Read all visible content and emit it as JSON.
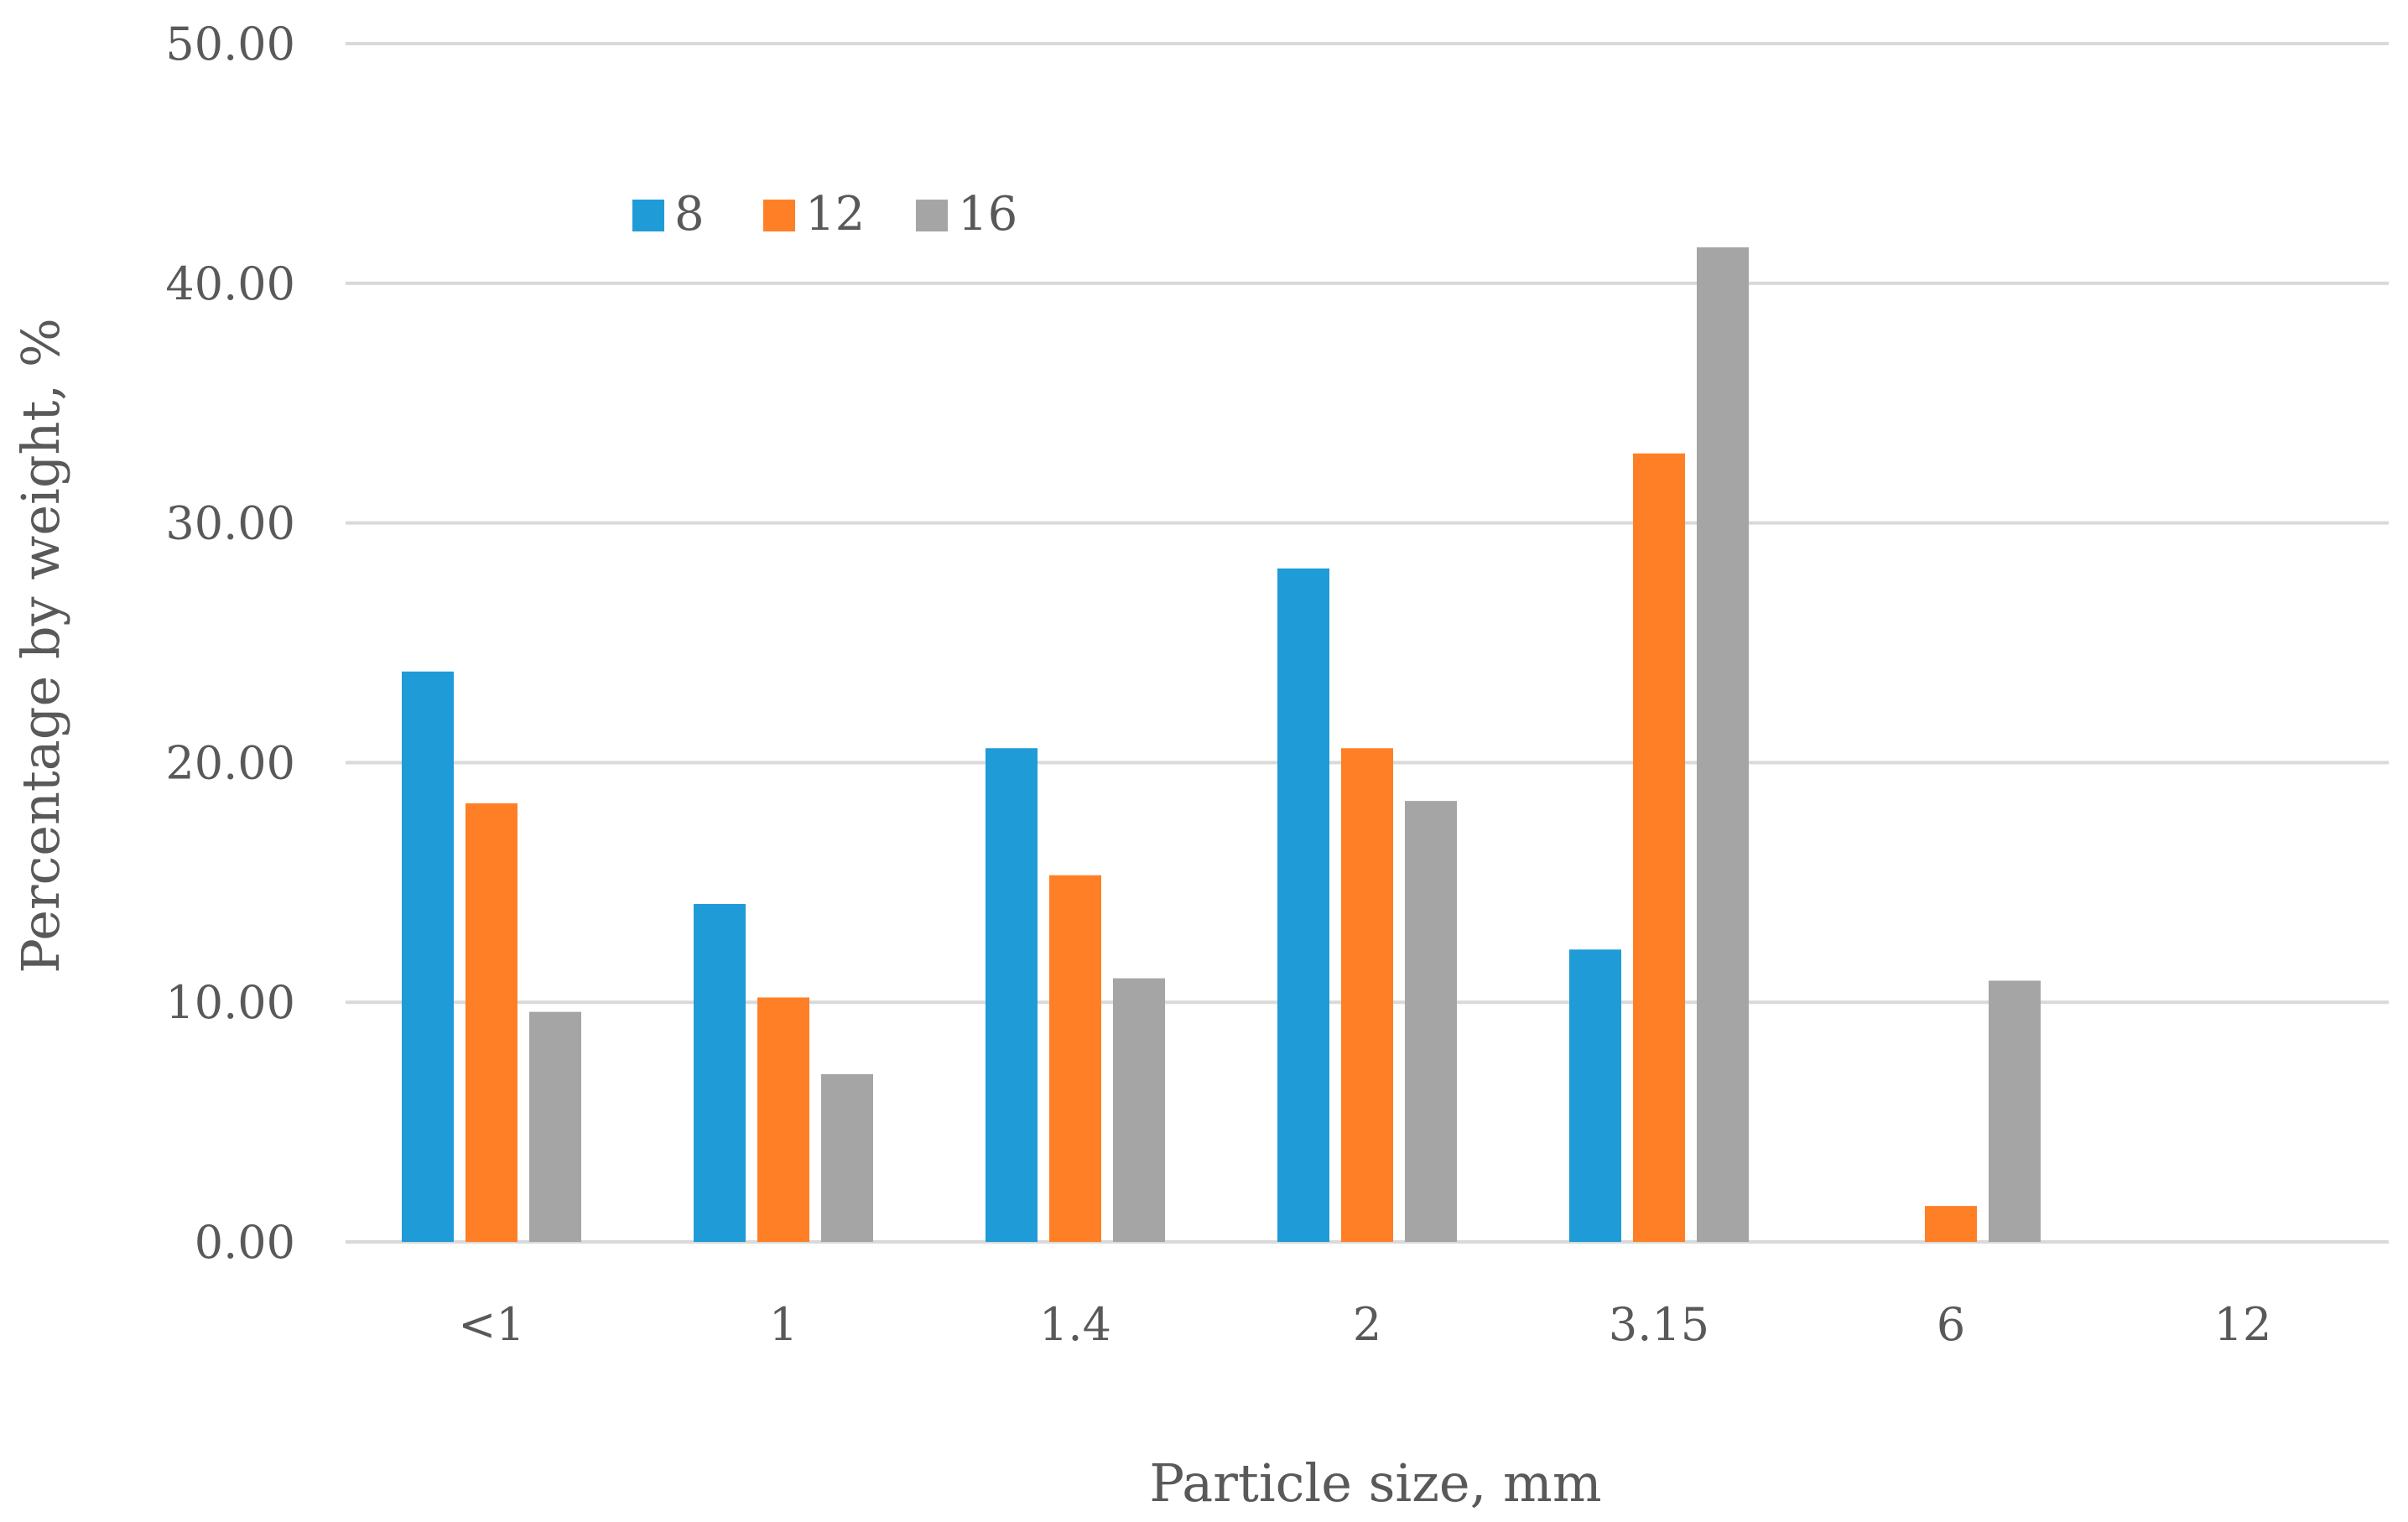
{
  "chart_data": {
    "type": "bar",
    "title": "",
    "xlabel": "Particle size, mm",
    "ylabel": "Percentage by weight, %",
    "categories": [
      "<1",
      "1",
      "1.4",
      "2",
      "3.15",
      "6",
      "12"
    ],
    "ylim": [
      0,
      50
    ],
    "yticks": [
      "0.00",
      "10.00",
      "20.00",
      "30.00",
      "40.00",
      "50.00"
    ],
    "ytick_values": [
      0,
      10,
      20,
      30,
      40,
      50
    ],
    "grid": true,
    "legend_position": "top-left",
    "series": [
      {
        "name": "8",
        "color": "#1f9bd7",
        "values": [
          23.8,
          14.1,
          20.6,
          28.1,
          12.2,
          0,
          0
        ]
      },
      {
        "name": "12",
        "color": "#ff7f27",
        "values": [
          18.3,
          10.2,
          15.3,
          20.6,
          32.9,
          1.5,
          0
        ]
      },
      {
        "name": "16",
        "color": "#a5a5a5",
        "values": [
          9.6,
          7.0,
          11.0,
          18.4,
          41.5,
          10.9,
          0
        ]
      }
    ]
  }
}
